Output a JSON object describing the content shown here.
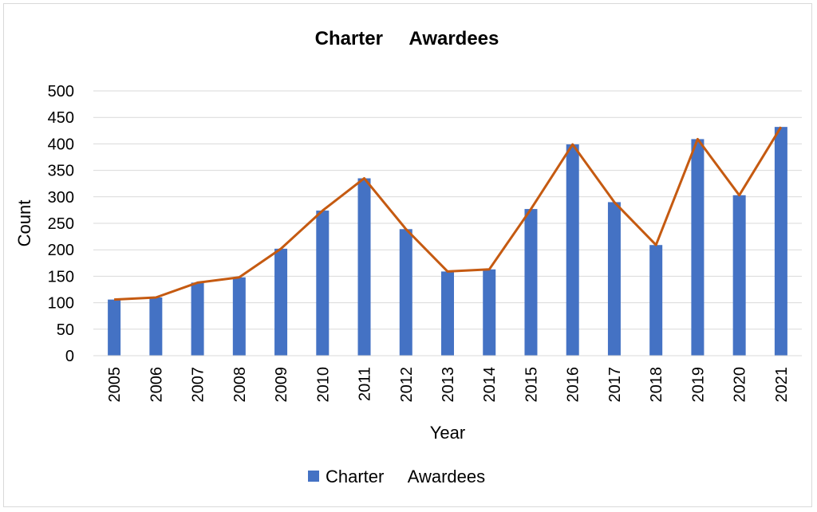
{
  "chart_data": {
    "type": "bar",
    "title": "Charter     Awardees",
    "xlabel": "Year",
    "ylabel": "Count",
    "ylim": [
      0,
      500
    ],
    "yticks": [
      0,
      50,
      100,
      150,
      200,
      250,
      300,
      350,
      400,
      450,
      500
    ],
    "grid": true,
    "legend": {
      "position": "bottom",
      "entries": [
        "Charter     Awardees"
      ]
    },
    "categories": [
      "2005",
      "2006",
      "2007",
      "2008",
      "2009",
      "2010",
      "2011",
      "2012",
      "2013",
      "2014",
      "2015",
      "2016",
      "2017",
      "2018",
      "2019",
      "2020",
      "2021"
    ],
    "series": [
      {
        "name": "Charter     Awardees",
        "type": "bar",
        "color": "#4472C4",
        "values": [
          106,
          110,
          138,
          148,
          202,
          274,
          335,
          239,
          159,
          163,
          277,
          399,
          290,
          209,
          409,
          303,
          432
        ]
      },
      {
        "type": "line",
        "color": "#C55A11",
        "values": [
          106,
          110,
          138,
          148,
          202,
          274,
          335,
          239,
          159,
          163,
          277,
          399,
          290,
          209,
          409,
          303,
          432
        ]
      }
    ]
  }
}
